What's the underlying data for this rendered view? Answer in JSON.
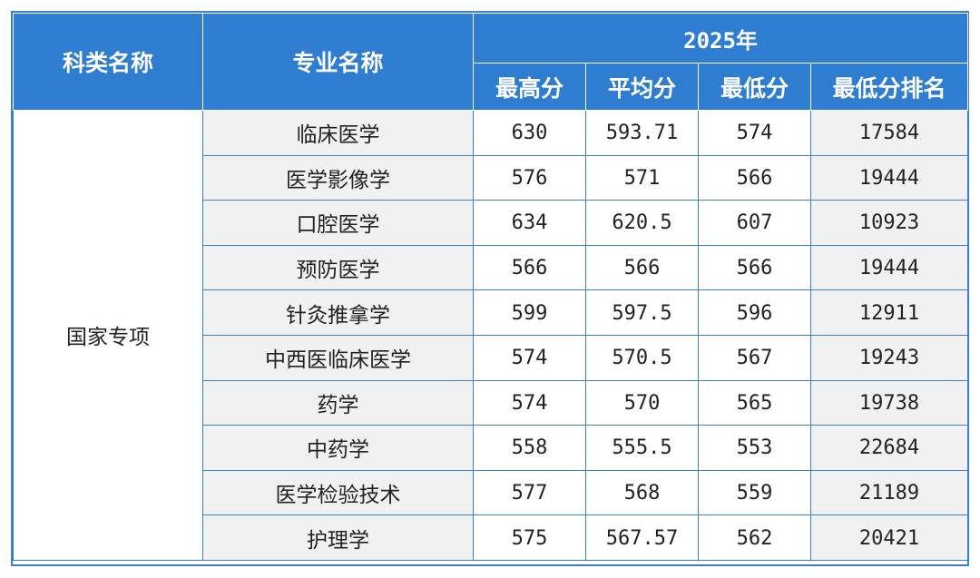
{
  "headers": {
    "category": "科类名称",
    "major": "专业名称",
    "year": "2025年",
    "max": "最高分",
    "avg": "平均分",
    "min": "最低分",
    "min_rank": "最低分排名"
  },
  "category": "国家专项",
  "rows": [
    {
      "major": "临床医学",
      "max": "630",
      "avg": "593.71",
      "min": "574",
      "rank": "17584"
    },
    {
      "major": "医学影像学",
      "max": "576",
      "avg": "571",
      "min": "566",
      "rank": "19444"
    },
    {
      "major": "口腔医学",
      "max": "634",
      "avg": "620.5",
      "min": "607",
      "rank": "10923"
    },
    {
      "major": "预防医学",
      "max": "566",
      "avg": "566",
      "min": "566",
      "rank": "19444"
    },
    {
      "major": "针灸推拿学",
      "max": "599",
      "avg": "597.5",
      "min": "596",
      "rank": "12911"
    },
    {
      "major": "中西医临床医学",
      "max": "574",
      "avg": "570.5",
      "min": "567",
      "rank": "19243"
    },
    {
      "major": "药学",
      "max": "574",
      "avg": "570",
      "min": "565",
      "rank": "19738"
    },
    {
      "major": "中药学",
      "max": "558",
      "avg": "555.5",
      "min": "553",
      "rank": "22684"
    },
    {
      "major": "医学检验技术",
      "max": "577",
      "avg": "568",
      "min": "559",
      "rank": "21189"
    },
    {
      "major": "护理学",
      "max": "575",
      "avg": "567.57",
      "min": "562",
      "rank": "20421"
    }
  ],
  "colors": {
    "header_bg": "#2f7dd0",
    "border": "#3b82c4",
    "alt_bg": "#f1f1f1"
  }
}
